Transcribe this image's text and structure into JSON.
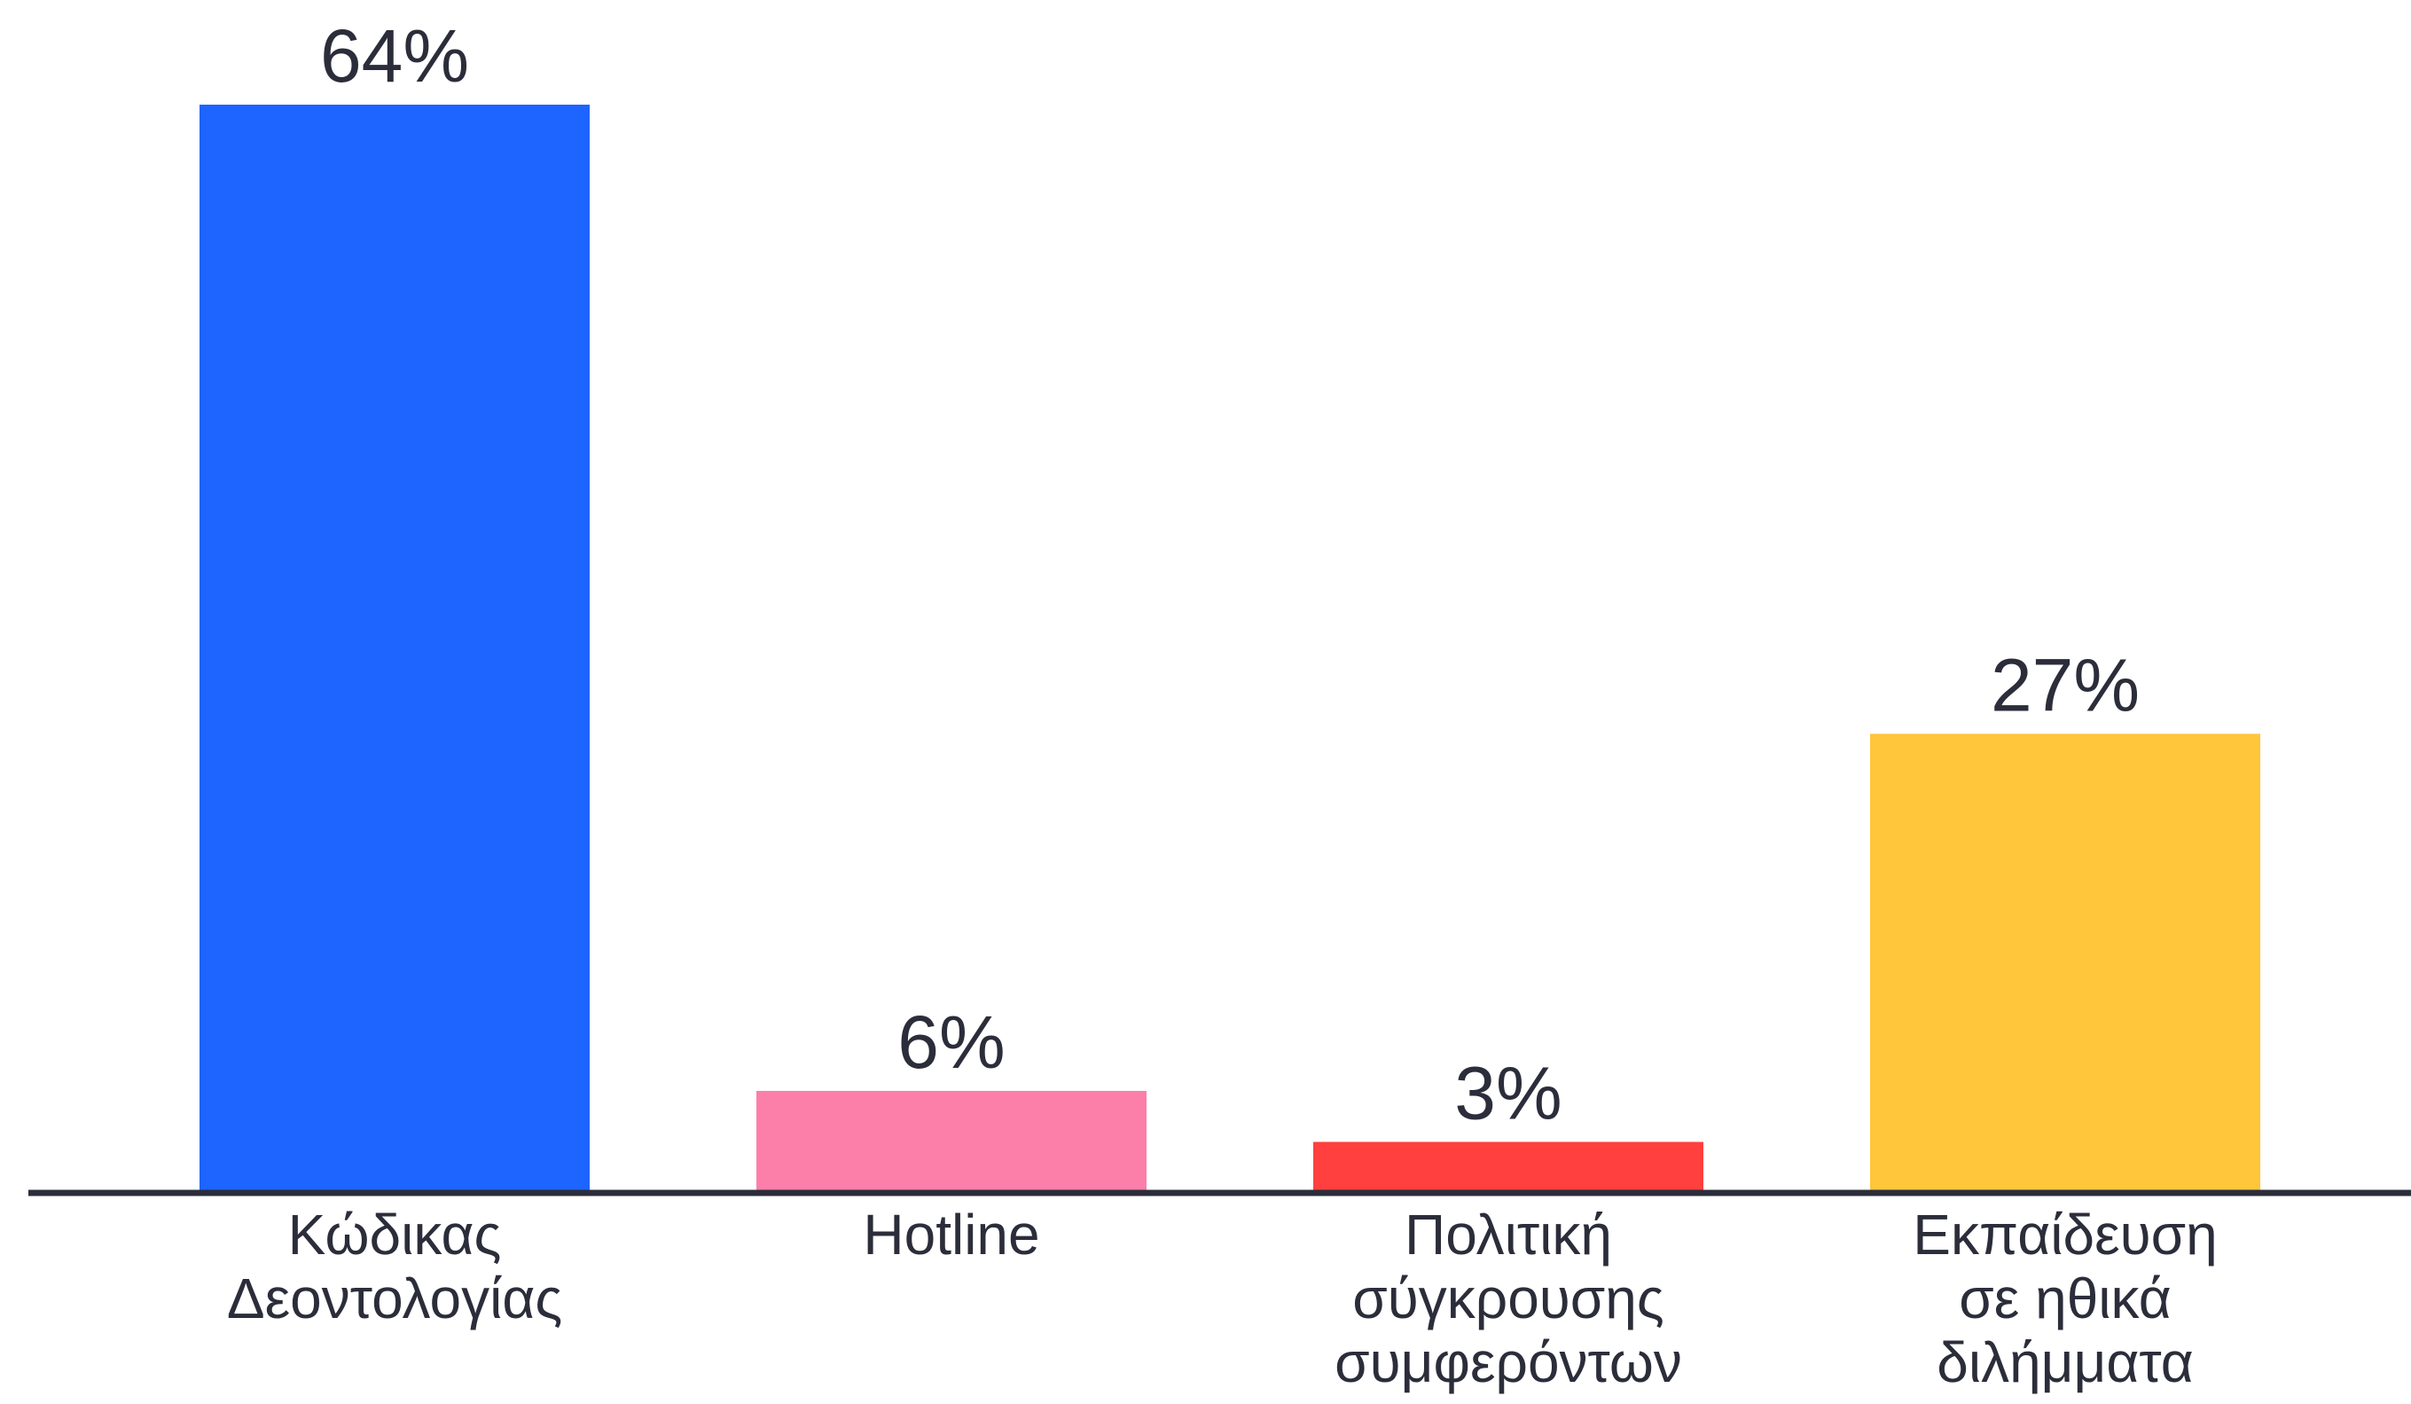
{
  "chart_data": {
    "type": "bar",
    "categories": [
      [
        "Κώδικας",
        "Δεοντολογίας"
      ],
      [
        "Hotline"
      ],
      [
        "Πολιτική",
        "σύγκρουσης",
        "συμφερόντων"
      ],
      [
        "Εκπαίδευση",
        "σε ηθικά",
        "διλήμματα"
      ]
    ],
    "values": [
      64,
      6,
      3,
      27
    ],
    "value_labels": [
      "64%",
      "6%",
      "3%",
      "27%"
    ],
    "colors": [
      "#1e64ff",
      "#fb7fa9",
      "#ff403f",
      "#ffc53b"
    ],
    "axis_color": "#2b2d3a",
    "ylim": [
      0,
      64
    ],
    "grid": false,
    "legend": "none"
  }
}
